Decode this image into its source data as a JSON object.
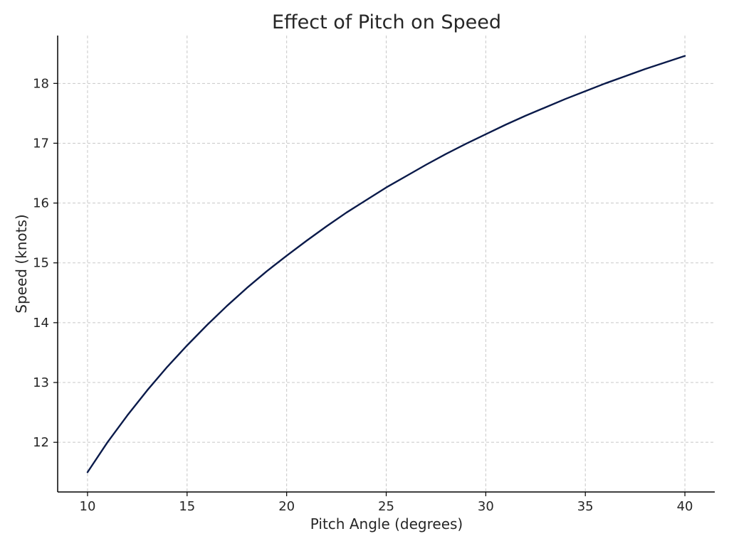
{
  "chart_data": {
    "type": "line",
    "title": "Effect of Pitch on Speed",
    "xlabel": "Pitch Angle (degrees)",
    "ylabel": "Speed (knots)",
    "xlim": [
      8.5,
      41.5
    ],
    "ylim": [
      11.17,
      18.8
    ],
    "x_ticks": [
      10,
      15,
      20,
      25,
      30,
      35,
      40
    ],
    "y_ticks": [
      12,
      13,
      14,
      15,
      16,
      17,
      18
    ],
    "grid": true,
    "legend": "none",
    "line_color": "#0a1a4a",
    "series": [
      {
        "x": [
          10,
          11,
          12,
          13,
          14,
          15,
          16,
          17,
          18,
          19,
          20,
          21,
          22,
          23,
          24,
          25,
          26,
          27,
          28,
          29,
          30,
          31,
          32,
          33,
          34,
          35,
          36,
          37,
          38,
          39,
          40
        ],
        "values": [
          11.5,
          12.0,
          12.45,
          12.87,
          13.26,
          13.62,
          13.96,
          14.28,
          14.58,
          14.86,
          15.12,
          15.37,
          15.61,
          15.84,
          16.05,
          16.26,
          16.45,
          16.64,
          16.82,
          16.99,
          17.15,
          17.31,
          17.46,
          17.6,
          17.74,
          17.87,
          18.0,
          18.12,
          18.24,
          18.35,
          18.46
        ]
      }
    ]
  }
}
